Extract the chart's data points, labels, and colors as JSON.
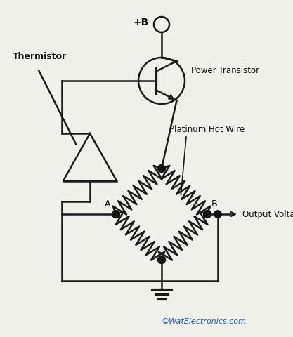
{
  "background_color": "#f0f0eb",
  "line_color": "#1a1a1a",
  "text_color": "#111111",
  "dot_color": "#111111",
  "watermark_color": "#1a5fb0",
  "labels": {
    "thermistor": "Thermistor",
    "power_transistor": "Power Transistor",
    "platinum_hot_wire": "Platinum Hot Wire",
    "output_voltage": "Output Voltage",
    "node_a": "A",
    "node_b": "B",
    "vcc": "+B",
    "watermark": "©WatElectronics.com"
  },
  "figsize": [
    4.17,
    4.8
  ],
  "dpi": 100
}
